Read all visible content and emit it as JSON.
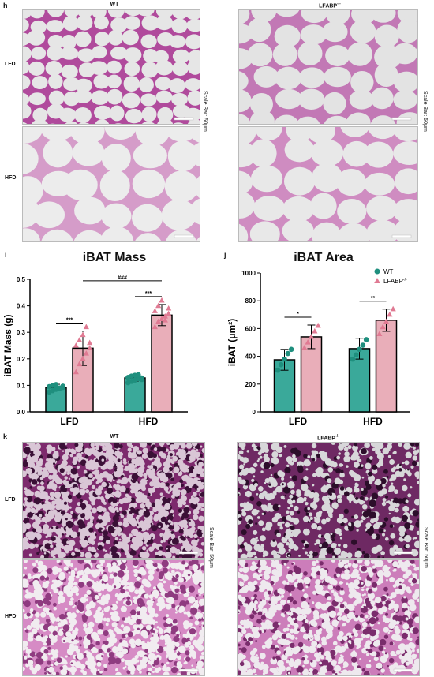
{
  "figure": {
    "panels": {
      "h": {
        "letter": "h",
        "col_left": "WT",
        "col_right": "LFABP",
        "col_right_sup": "-/-",
        "row_top": "LFD",
        "row_bottom": "HFD",
        "scale_label": "Scale Bar: 50μm"
      },
      "i": {
        "letter": "i",
        "title": "iBAT Mass"
      },
      "j": {
        "letter": "j",
        "title": "iBAT Area"
      },
      "k": {
        "letter": "k",
        "col_left": "WT",
        "col_right": "LFABP",
        "col_right_sup": "-/-",
        "row_top": "LFD",
        "row_bottom": "HFD",
        "scale_label": "Scale Bar: 50μm"
      }
    }
  },
  "chart_data": [
    {
      "id": "i",
      "type": "bar",
      "title": "iBAT Mass",
      "ylabel": "iBAT Mass (g)",
      "categories": [
        "LFD",
        "HFD"
      ],
      "ylim": [
        0.0,
        0.5
      ],
      "yticks": [
        "0.0",
        "0.1",
        "0.2",
        "0.3",
        "0.4",
        "0.5"
      ],
      "series": [
        {
          "name": "WT",
          "color": "#3aa99a",
          "values": [
            0.092,
            0.128
          ],
          "errors": [
            0.012,
            0.012
          ],
          "points": [
            [
              0.075,
              0.08,
              0.085,
              0.09,
              0.092,
              0.095,
              0.1,
              0.103,
              0.088,
              0.097
            ],
            [
              0.11,
              0.115,
              0.12,
              0.125,
              0.128,
              0.13,
              0.135,
              0.138,
              0.14,
              0.122
            ]
          ]
        },
        {
          "name": "LFABP-/-",
          "color": "#e9aeb9",
          "values": [
            0.24,
            0.365
          ],
          "errors": [
            0.065,
            0.04
          ],
          "points": [
            [
              0.15,
              0.18,
              0.2,
              0.22,
              0.24,
              0.25,
              0.27,
              0.29,
              0.32,
              0.26
            ],
            [
              0.32,
              0.34,
              0.35,
              0.36,
              0.37,
              0.38,
              0.4,
              0.42,
              0.345,
              0.39
            ]
          ]
        }
      ],
      "significance": [
        {
          "label": "***",
          "from": "LFD-WT",
          "to": "LFD-LFABP"
        },
        {
          "label": "***",
          "from": "HFD-WT",
          "to": "HFD-LFABP"
        },
        {
          "label": "###",
          "from": "LFD-LFABP",
          "to": "HFD-LFABP"
        }
      ]
    },
    {
      "id": "j",
      "type": "bar",
      "title": "iBAT Area",
      "ylabel": "iBAT (μm²)",
      "categories": [
        "LFD",
        "HFD"
      ],
      "ylim": [
        0,
        1000
      ],
      "yticks": [
        "0",
        "200",
        "400",
        "600",
        "800",
        "1000"
      ],
      "legend": [
        {
          "label": "WT",
          "marker": "circle",
          "color": "#1f8f7e"
        },
        {
          "label": "LFABP-/-",
          "marker": "triangle",
          "color": "#e07a93"
        }
      ],
      "series": [
        {
          "name": "WT",
          "color": "#3aa99a",
          "values": [
            375,
            455
          ],
          "errors": [
            75,
            75
          ],
          "points": [
            [
              300,
              340,
              380,
              420,
              450
            ],
            [
              380,
              410,
              450,
              480,
              520
            ]
          ]
        },
        {
          "name": "LFABP-/-",
          "color": "#e9aeb9",
          "values": [
            540,
            660
          ],
          "errors": [
            85,
            80
          ],
          "points": [
            [
              460,
              500,
              540,
              580,
              620
            ],
            [
              560,
              610,
              650,
              700,
              740
            ]
          ]
        }
      ],
      "significance": [
        {
          "label": "*",
          "from": "LFD-WT",
          "to": "LFD-LFABP"
        },
        {
          "label": "**",
          "from": "HFD-WT",
          "to": "HFD-LFABP"
        }
      ]
    }
  ]
}
